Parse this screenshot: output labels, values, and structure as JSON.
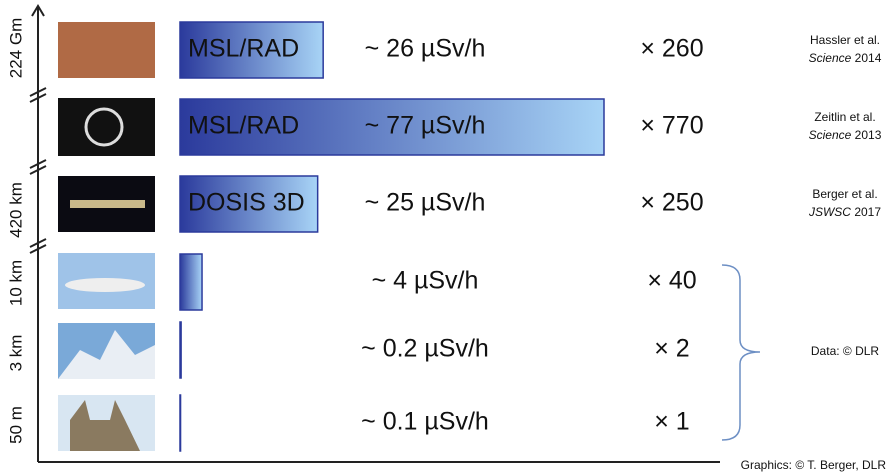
{
  "chart_data": {
    "type": "bar",
    "orientation": "horizontal",
    "categories": [
      "MSL/RAD",
      "MSL/RAD",
      "DOSIS 3D",
      null,
      null,
      null
    ],
    "values": [
      26,
      77,
      25,
      4,
      0.2,
      0.1
    ],
    "value_labels": [
      "~ 26 µSv/h",
      "~ 77 µSv/h",
      "~ 25 µSv/h",
      "~ 4 µSv/h",
      "~ 0.2 µSv/h",
      "~ 0.1 µSv/h"
    ],
    "ratio_labels": [
      "× 260",
      "× 770",
      "× 250",
      "× 40",
      "× 2",
      "× 1"
    ],
    "color": "#2b3a9c",
    "color_end": "#a8d4f6",
    "altitude_labels": [
      "224 Gm",
      "420 km",
      "10 km",
      "3 km",
      "50 m"
    ],
    "references": [
      {
        "authors": "Hassler et al.",
        "journal": "Science",
        "year": "2014"
      },
      {
        "authors": "Zeitlin et al.",
        "journal": "Science",
        "year": "2013"
      },
      {
        "authors": "Berger et al.",
        "journal": "JSWSC",
        "year": "2017"
      }
    ],
    "data_credit": "Data: © DLR",
    "graphics_credit": "Graphics: © T. Berger, DLR"
  }
}
